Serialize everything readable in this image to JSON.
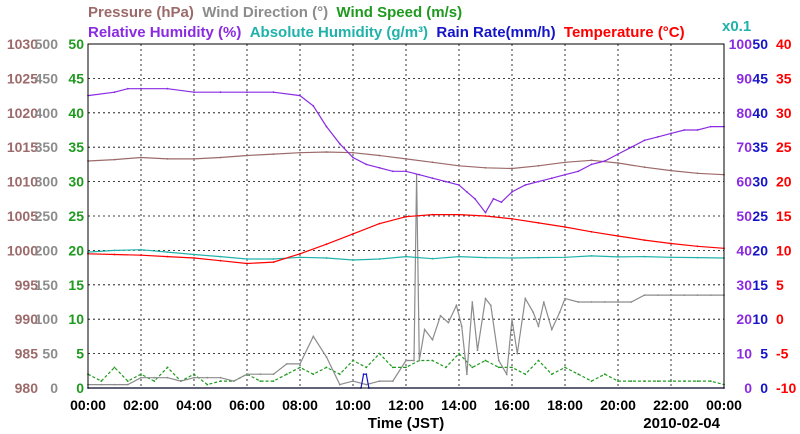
{
  "chart_data": {
    "type": "line",
    "date": "2010-02-04",
    "xlabel": "Time (JST)",
    "x_ticks": [
      "00:00",
      "02:00",
      "04:00",
      "06:00",
      "08:00",
      "10:00",
      "12:00",
      "14:00",
      "16:00",
      "18:00",
      "20:00",
      "22:00",
      "00:00"
    ],
    "x_range_hours": [
      0,
      24
    ],
    "legend_row1": [
      {
        "text": "Pressure (hPa)",
        "color": "#9c6a6a"
      },
      {
        "text": "Wind Direction (°)",
        "color": "#8c8c8c"
      },
      {
        "text": "Wind Speed (m/s)",
        "color": "#1f9a1f"
      }
    ],
    "legend_row2": [
      {
        "text": "Relative Humidity (%)",
        "color": "#8a2be2"
      },
      {
        "text": "Absolute Humidity (g/m³)",
        "color": "#20b2aa"
      },
      {
        "text": "Rain Rate(mm/h)",
        "color": "#1414c8"
      },
      {
        "text": "Temperature (°C)",
        "color": "#ff0000"
      }
    ],
    "scale_note": {
      "text": "x0.1",
      "color": "#20b2aa"
    },
    "axes": {
      "pressure": {
        "color": "#9c6a6a",
        "range": [
          980,
          1030
        ],
        "ticks": [
          "1030",
          "1025",
          "1020",
          "1015",
          "1010",
          "1005",
          "1000",
          "995",
          "990",
          "985",
          "980"
        ]
      },
      "wind_direction": {
        "color": "#8c8c8c",
        "range": [
          0,
          500
        ],
        "ticks": [
          "500",
          "450",
          "400",
          "350",
          "300",
          "250",
          "200",
          "150",
          "100",
          "50",
          "0"
        ]
      },
      "wind_speed": {
        "color": "#1f9a1f",
        "range": [
          0,
          50
        ],
        "ticks": [
          "50",
          "45",
          "40",
          "35",
          "30",
          "25",
          "20",
          "15",
          "10",
          "5",
          "0"
        ]
      },
      "humidity": {
        "color": "#8a2be2",
        "range": [
          0,
          100
        ],
        "ticks": [
          "100",
          "90",
          "80",
          "70",
          "60",
          "50",
          "40",
          "30",
          "20",
          "10",
          "0"
        ]
      },
      "rain_rate": {
        "color": "#1414c8",
        "range": [
          0,
          50
        ],
        "ticks": [
          "50",
          "45",
          "40",
          "35",
          "30",
          "25",
          "20",
          "15",
          "10",
          "5",
          "0"
        ]
      },
      "temperature": {
        "color": "#ff0000",
        "range": [
          -10,
          40
        ],
        "ticks": [
          "40",
          "35",
          "30",
          "25",
          "20",
          "15",
          "10",
          "5",
          "0",
          "-5",
          "-10"
        ]
      }
    },
    "series": [
      {
        "name": "Pressure (hPa)",
        "axis": "pressure",
        "color": "#9c6a6a",
        "x": [
          0,
          1,
          2,
          3,
          4,
          5,
          6,
          7,
          8,
          9,
          10,
          11,
          12,
          13,
          14,
          15,
          16,
          17,
          18,
          19,
          20,
          21,
          22,
          23,
          24
        ],
        "y": [
          1013.0,
          1013.2,
          1013.5,
          1013.3,
          1013.3,
          1013.5,
          1013.8,
          1014.0,
          1014.2,
          1014.3,
          1014.2,
          1013.8,
          1013.3,
          1012.8,
          1012.3,
          1012.0,
          1011.9,
          1012.3,
          1012.8,
          1013.1,
          1012.7,
          1012.1,
          1011.6,
          1011.2,
          1011.0
        ]
      },
      {
        "name": "Wind Direction (°)",
        "axis": "wind_direction",
        "color": "#8c8c8c",
        "x": [
          0,
          0.5,
          1,
          1.5,
          2,
          2.5,
          3,
          3.5,
          4,
          4.5,
          5,
          5.5,
          6,
          6.5,
          7,
          7.5,
          8,
          8.5,
          9,
          9.5,
          10,
          10.5,
          11,
          11.5,
          12,
          12.3,
          12.4,
          12.5,
          12.7,
          13,
          13.3,
          13.6,
          13.9,
          14.1,
          14.3,
          14.5,
          14.7,
          15,
          15.2,
          15.5,
          15.8,
          16,
          16.2,
          16.5,
          16.8,
          17,
          17.2,
          17.5,
          17.8,
          18,
          18.5,
          19,
          19.5,
          20,
          20.5,
          21,
          21.5,
          22,
          22.5,
          23,
          23.5,
          24
        ],
        "y": [
          5,
          5,
          5,
          5,
          15,
          15,
          15,
          10,
          15,
          15,
          15,
          10,
          20,
          20,
          20,
          35,
          35,
          75,
          45,
          5,
          10,
          5,
          10,
          10,
          40,
          40,
          310,
          40,
          85,
          70,
          105,
          95,
          120,
          90,
          20,
          125,
          55,
          130,
          120,
          40,
          20,
          100,
          50,
          130,
          110,
          90,
          125,
          85,
          110,
          130,
          125,
          125,
          125,
          125,
          125,
          135,
          135,
          135,
          135,
          135,
          135,
          135
        ]
      },
      {
        "name": "Wind Speed (m/s)",
        "axis": "wind_speed",
        "color": "#1f9a1f",
        "x": [
          0,
          0.5,
          1,
          1.5,
          2,
          2.5,
          3,
          3.5,
          4,
          4.5,
          5,
          5.5,
          6,
          6.5,
          7,
          7.5,
          8,
          8.5,
          9,
          9.5,
          10,
          10.5,
          11,
          11.5,
          12,
          12.5,
          13,
          13.5,
          14,
          14.5,
          15,
          15.5,
          16,
          16.5,
          17,
          17.5,
          18,
          18.5,
          19,
          19.5,
          20,
          20.5,
          21,
          21.5,
          22,
          22.5,
          23,
          23.5,
          24
        ],
        "y": [
          2,
          1,
          3,
          1,
          2,
          1,
          3,
          1,
          2,
          0.5,
          1,
          1,
          2,
          1,
          1,
          2,
          3,
          2,
          3,
          2,
          4,
          3,
          5,
          3,
          3,
          4,
          4,
          3,
          5,
          3,
          4,
          3,
          3,
          2,
          4,
          2,
          3,
          2,
          1,
          2,
          1,
          1,
          1,
          1,
          1,
          1,
          1,
          1,
          0.5
        ]
      },
      {
        "name": "Relative Humidity (%)",
        "axis": "humidity",
        "color": "#8a2be2",
        "x": [
          0,
          1,
          1.5,
          2,
          3,
          4,
          5,
          6,
          7,
          8,
          8.5,
          9,
          9.5,
          10,
          10.5,
          11,
          11.5,
          12,
          12.5,
          13,
          13.5,
          14,
          14.3,
          14.6,
          15,
          15.3,
          15.6,
          16,
          16.5,
          17,
          17.5,
          18,
          18.5,
          19,
          19.5,
          20,
          20.5,
          21,
          21.5,
          22,
          22.5,
          23,
          23.5,
          24
        ],
        "y": [
          85,
          86,
          87,
          87,
          87,
          86,
          86,
          86,
          86,
          85,
          82,
          76,
          71,
          67,
          65,
          64,
          63,
          63,
          62,
          61,
          60,
          59,
          57,
          55,
          51,
          55,
          54,
          57,
          59,
          60,
          61,
          62,
          63,
          65,
          66,
          68,
          70,
          72,
          73,
          74,
          75,
          75,
          76,
          76
        ]
      },
      {
        "name": "Absolute Humidity (g/m³)",
        "axis": "humidity",
        "color": "#20b2aa",
        "x": [
          0,
          1,
          2,
          3,
          4,
          5,
          6,
          7,
          8,
          9,
          10,
          11,
          12,
          13,
          14,
          15,
          16,
          17,
          18,
          19,
          20,
          21,
          22,
          23,
          24
        ],
        "y": [
          39.5,
          40,
          40.2,
          39.5,
          38.8,
          38.2,
          37.5,
          37.5,
          38.0,
          37.8,
          37.2,
          37.5,
          38.2,
          37.6,
          38.2,
          37.9,
          37.8,
          37.9,
          38.0,
          38.4,
          38.1,
          38.2,
          38.0,
          37.9,
          37.8
        ]
      },
      {
        "name": "Rain Rate(mm/h)",
        "axis": "rain_rate",
        "color": "#1414c8",
        "x": [
          0,
          10.3,
          10.4,
          10.5,
          10.6,
          24
        ],
        "y": [
          0,
          0,
          2,
          2,
          0,
          0
        ]
      },
      {
        "name": "Temperature (°C)",
        "axis": "temperature",
        "color": "#ff0000",
        "x": [
          0,
          1,
          2,
          3,
          4,
          5,
          6,
          7,
          8,
          9,
          10,
          11,
          12,
          13,
          14,
          15,
          16,
          17,
          18,
          19,
          20,
          21,
          22,
          23,
          24
        ],
        "y": [
          9.5,
          9.4,
          9.3,
          9.1,
          8.9,
          8.5,
          8.1,
          8.3,
          9.5,
          10.9,
          12.4,
          13.9,
          14.9,
          15.2,
          15.2,
          15.0,
          14.6,
          14.0,
          13.4,
          12.7,
          12.1,
          11.5,
          11.0,
          10.6,
          10.3
        ]
      }
    ]
  }
}
